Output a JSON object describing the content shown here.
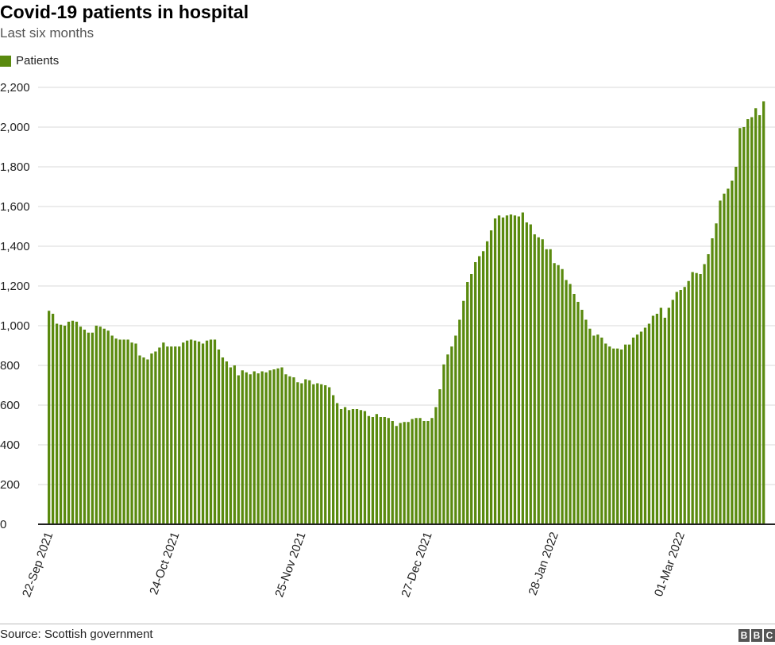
{
  "header": {
    "title": "Covid-19 patients in hospital",
    "subtitle": "Last six months"
  },
  "legend": {
    "label": "Patients",
    "color": "#5a8a0f"
  },
  "footer": {
    "source": "Source: Scottish government",
    "logo_letters": [
      "B",
      "B",
      "C"
    ]
  },
  "chart_data": {
    "type": "bar",
    "title": "Covid-19 patients in hospital",
    "subtitle": "Last six months",
    "series": [
      {
        "name": "Patients",
        "color": "#5a8a0f"
      }
    ],
    "x_start_label": "22-Sep 2021",
    "x_tick_labels": [
      "22-Sep 2021",
      "24-Oct 2021",
      "25-Nov 2021",
      "27-Dec 2021",
      "28-Jan 2022",
      "01-Mar 2022"
    ],
    "x_tick_every": 32,
    "values": [
      1075,
      1060,
      1010,
      1005,
      1000,
      1020,
      1025,
      1020,
      995,
      980,
      965,
      965,
      1000,
      995,
      985,
      975,
      950,
      935,
      930,
      930,
      930,
      915,
      910,
      850,
      840,
      830,
      860,
      870,
      890,
      915,
      895,
      895,
      895,
      895,
      915,
      925,
      930,
      925,
      920,
      910,
      925,
      930,
      930,
      880,
      840,
      820,
      790,
      800,
      750,
      775,
      765,
      755,
      770,
      760,
      770,
      765,
      775,
      780,
      785,
      790,
      755,
      745,
      740,
      715,
      710,
      730,
      725,
      705,
      710,
      705,
      700,
      690,
      650,
      610,
      580,
      590,
      575,
      580,
      580,
      575,
      570,
      545,
      540,
      555,
      540,
      540,
      535,
      520,
      495,
      510,
      515,
      515,
      530,
      535,
      535,
      520,
      520,
      535,
      590,
      680,
      805,
      855,
      895,
      950,
      1030,
      1125,
      1220,
      1260,
      1320,
      1350,
      1375,
      1425,
      1480,
      1540,
      1555,
      1545,
      1555,
      1560,
      1555,
      1550,
      1570,
      1520,
      1510,
      1460,
      1445,
      1435,
      1385,
      1385,
      1315,
      1305,
      1285,
      1230,
      1210,
      1160,
      1120,
      1080,
      1030,
      985,
      950,
      955,
      940,
      910,
      895,
      885,
      885,
      880,
      905,
      905,
      940,
      955,
      970,
      990,
      1010,
      1050,
      1060,
      1090,
      1040,
      1090,
      1130,
      1170,
      1180,
      1195,
      1225,
      1270,
      1265,
      1260,
      1310,
      1360,
      1440,
      1515,
      1630,
      1665,
      1690,
      1730,
      1800,
      1995,
      2000,
      2040,
      2050,
      2095,
      2060,
      2130
    ],
    "ylim": [
      0,
      2200
    ],
    "y_ticks": [
      0,
      200,
      400,
      600,
      800,
      1000,
      1200,
      1400,
      1600,
      1800,
      2000,
      2200
    ],
    "grid": true,
    "legend_position": "top-left"
  }
}
